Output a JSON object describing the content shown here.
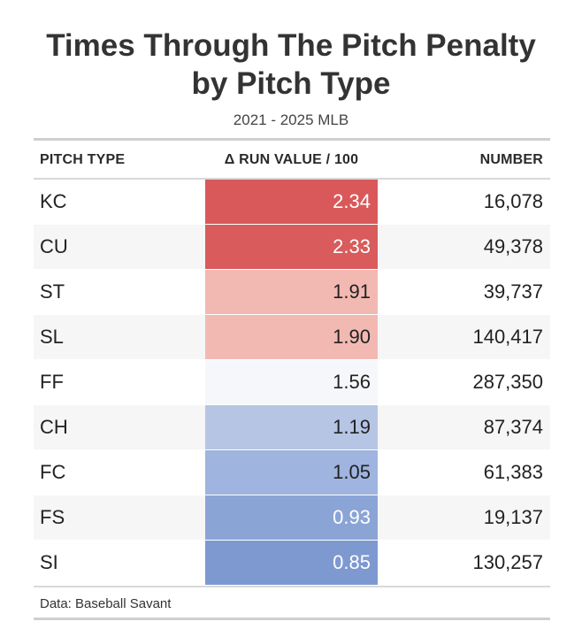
{
  "title_line1": "Times Through The Pitch Penalty",
  "title_line2": "by Pitch Type",
  "subtitle": "2021 - 2025 MLB",
  "source": "Data: Baseball Savant",
  "chart_data": {
    "type": "table",
    "columns": [
      "PITCH TYPE",
      "Δ RUN VALUE / 100",
      "NUMBER"
    ],
    "rows": [
      {
        "pitch_type": "KC",
        "run_value": "2.34",
        "number": "16,078",
        "fill": "#d9595a",
        "text_color": "#ffffff"
      },
      {
        "pitch_type": "CU",
        "run_value": "2.33",
        "number": "49,378",
        "fill": "#d95b5b",
        "text_color": "#ffffff"
      },
      {
        "pitch_type": "ST",
        "run_value": "1.91",
        "number": "39,737",
        "fill": "#f2b8b2",
        "text_color": "#222222"
      },
      {
        "pitch_type": "SL",
        "run_value": "1.90",
        "number": "140,417",
        "fill": "#f2b9b3",
        "text_color": "#222222"
      },
      {
        "pitch_type": "FF",
        "run_value": "1.56",
        "number": "287,350",
        "fill": "#f6f7fa",
        "text_color": "#222222"
      },
      {
        "pitch_type": "CH",
        "run_value": "1.19",
        "number": "87,374",
        "fill": "#b6c5e4",
        "text_color": "#222222"
      },
      {
        "pitch_type": "FC",
        "run_value": "1.05",
        "number": "61,383",
        "fill": "#9fb4de",
        "text_color": "#222222"
      },
      {
        "pitch_type": "FS",
        "run_value": "0.93",
        "number": "19,137",
        "fill": "#8ba4d6",
        "text_color": "#ffffff"
      },
      {
        "pitch_type": "SI",
        "run_value": "0.85",
        "number": "130,257",
        "fill": "#7d99d0",
        "text_color": "#ffffff"
      }
    ]
  }
}
